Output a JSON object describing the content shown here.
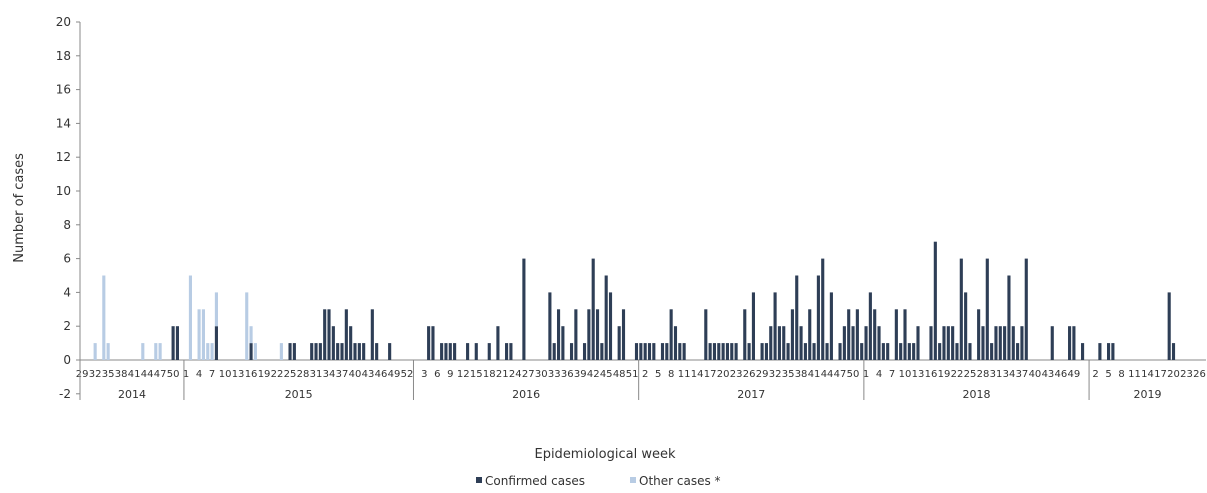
{
  "chart_data": {
    "type": "bar",
    "stacked": true,
    "xlabel": "Epidemiological week",
    "ylabel": "Number  of cases",
    "ylim": [
      -2,
      20
    ],
    "yticks": [
      -2,
      0,
      2,
      4,
      6,
      8,
      10,
      12,
      14,
      16,
      18,
      20
    ],
    "grid": false,
    "legend_position": "bottom",
    "years": [
      {
        "label": "2014",
        "weeks": [
          29,
          30,
          31,
          32,
          33,
          34,
          35,
          36,
          37,
          38,
          39,
          40,
          41,
          42,
          43,
          44,
          45,
          46,
          47,
          48,
          49,
          50,
          51,
          52
        ]
      },
      {
        "label": "2015",
        "weeks": "1-53"
      },
      {
        "label": "2016",
        "weeks": "1-52"
      },
      {
        "label": "2017",
        "weeks": "1-52"
      },
      {
        "label": "2018",
        "weeks": "1-52"
      },
      {
        "label": "2019",
        "weeks": "1-27"
      }
    ],
    "tick_labels": [
      {
        "year": "2014",
        "labels": [
          "29",
          "32",
          "35",
          "38",
          "41",
          "44",
          "47",
          "50"
        ]
      },
      {
        "year": "2015",
        "labels": [
          "1",
          "4",
          "7",
          "10",
          "13",
          "16",
          "19",
          "22",
          "25",
          "28",
          "31",
          "34",
          "37",
          "40",
          "43",
          "46",
          "49",
          "52"
        ]
      },
      {
        "year": "2016",
        "labels": [
          "3",
          "6",
          "9",
          "12",
          "15",
          "18",
          "21",
          "24",
          "27",
          "30",
          "33",
          "36",
          "39",
          "42",
          "45",
          "48",
          "51"
        ]
      },
      {
        "year": "2017",
        "labels": [
          "2",
          "5",
          "8",
          "11",
          "14",
          "17",
          "20",
          "23",
          "26",
          "29",
          "32",
          "35",
          "38",
          "41",
          "44",
          "47",
          "50"
        ]
      },
      {
        "year": "2018",
        "labels": [
          "1",
          "4",
          "7",
          "10",
          "13",
          "16",
          "19",
          "22",
          "25",
          "28",
          "31",
          "34",
          "37",
          "40",
          "43",
          "46",
          "49"
        ]
      },
      {
        "year": "2019",
        "labels": [
          "2",
          "5",
          "8",
          "11",
          "14",
          "17",
          "20",
          "23",
          "26"
        ]
      }
    ],
    "series": [
      {
        "name": "Confirmed cases",
        "color": "#2e3e56",
        "values": [
          0,
          0,
          0,
          0,
          0,
          0,
          0,
          0,
          0,
          0,
          0,
          0,
          0,
          0,
          0,
          0,
          0,
          0,
          0,
          0,
          0,
          2,
          2,
          0,
          0,
          0,
          0,
          0,
          0,
          0,
          0,
          2,
          0,
          0,
          0,
          0,
          0,
          0,
          0,
          1,
          0,
          0,
          0,
          0,
          0,
          0,
          0,
          0,
          1,
          1,
          0,
          0,
          0,
          1,
          1,
          1,
          3,
          3,
          2,
          1,
          1,
          3,
          2,
          1,
          1,
          1,
          0,
          3,
          1,
          0,
          0,
          1,
          0,
          0,
          0,
          0,
          0,
          0,
          0,
          0,
          2,
          2,
          0,
          1,
          1,
          1,
          1,
          0,
          0,
          1,
          0,
          1,
          0,
          0,
          1,
          0,
          2,
          0,
          1,
          1,
          0,
          0,
          6,
          0,
          0,
          0,
          0,
          0,
          4,
          1,
          3,
          2,
          0,
          1,
          3,
          0,
          1,
          3,
          6,
          3,
          1,
          5,
          4,
          0,
          2,
          3,
          0,
          0,
          1,
          1,
          1,
          1,
          1,
          0,
          1,
          1,
          3,
          2,
          1,
          1,
          0,
          0,
          0,
          0,
          3,
          1,
          1,
          1,
          1,
          1,
          1,
          1,
          0,
          3,
          1,
          4,
          0,
          1,
          1,
          2,
          4,
          2,
          2,
          1,
          3,
          5,
          2,
          1,
          3,
          1,
          5,
          6,
          1,
          4,
          0,
          1,
          2,
          3,
          2,
          3,
          1,
          2,
          4,
          3,
          2,
          1,
          1,
          0,
          3,
          1,
          3,
          1,
          1,
          2,
          0,
          0,
          2,
          7,
          1,
          2,
          2,
          2,
          1,
          6,
          4,
          1,
          0,
          3,
          2,
          6,
          1,
          2,
          2,
          2,
          5,
          2,
          1,
          2,
          6,
          0,
          0,
          0,
          0,
          0,
          2,
          0,
          0,
          0,
          2,
          2,
          0,
          1,
          0,
          0,
          0,
          1,
          0,
          1,
          1,
          0,
          0,
          0,
          0,
          0,
          0,
          0,
          0,
          0,
          0,
          0,
          0,
          4,
          1,
          0
        ]
      },
      {
        "name": "Other cases *",
        "color": "#b8cce4",
        "values": [
          0,
          0,
          0,
          1,
          0,
          5,
          1,
          0,
          0,
          0,
          0,
          0,
          0,
          0,
          1,
          0,
          0,
          1,
          1,
          0,
          0,
          0,
          0,
          0,
          0,
          5,
          0,
          3,
          3,
          1,
          1,
          2,
          0,
          0,
          0,
          0,
          0,
          0,
          4,
          1,
          1,
          0,
          0,
          0,
          0,
          0,
          1,
          0,
          0,
          0,
          0,
          0,
          0,
          0,
          0,
          0,
          0,
          0,
          0,
          0,
          0,
          0,
          0,
          0,
          0,
          0,
          0,
          0,
          0,
          0,
          0,
          0,
          0,
          0,
          0,
          0,
          0,
          0,
          0,
          0,
          0,
          0,
          0,
          0,
          0,
          0,
          0,
          0,
          0,
          0,
          0,
          0,
          0,
          0,
          0,
          0,
          0,
          0,
          0,
          0,
          0,
          0,
          0,
          0,
          0,
          0,
          0,
          0,
          0,
          0,
          0,
          0,
          0,
          0,
          0,
          0,
          0,
          0,
          0,
          0,
          0,
          0,
          0,
          0,
          0,
          0,
          0,
          0,
          0,
          0,
          0,
          0,
          0,
          0,
          0,
          0,
          0,
          0,
          0,
          0,
          0,
          0,
          0,
          0,
          0,
          0,
          0,
          0,
          0,
          0,
          0,
          0,
          0,
          0,
          0,
          0,
          0,
          0,
          0,
          0,
          0,
          0,
          0,
          0,
          0,
          0,
          0,
          0,
          0,
          0,
          0,
          0,
          0,
          0,
          0,
          0,
          0,
          0,
          0,
          0,
          0,
          0,
          0,
          0,
          0,
          0,
          0,
          0,
          0,
          0,
          0,
          0,
          0,
          0,
          0,
          0,
          0,
          0,
          0,
          0,
          0,
          0,
          0,
          0,
          0,
          0,
          0,
          0,
          0,
          0,
          0,
          0,
          0,
          0,
          0,
          0,
          0,
          0,
          0,
          0,
          0,
          0,
          0,
          0,
          0,
          0,
          0,
          0,
          0,
          0,
          0,
          0,
          0,
          0,
          0,
          0,
          0,
          0,
          0,
          0,
          0,
          0,
          0,
          0,
          0,
          0,
          0,
          0,
          0,
          0,
          0,
          0,
          0,
          0
        ]
      }
    ]
  }
}
